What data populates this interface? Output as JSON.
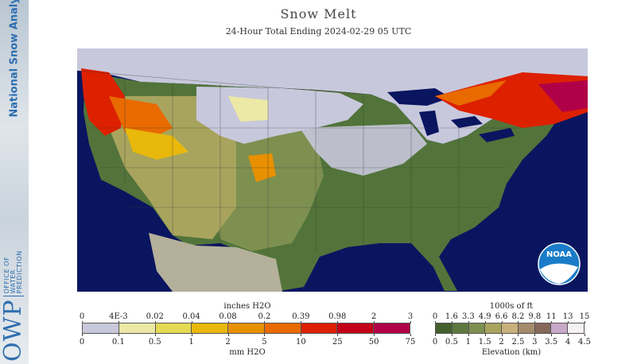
{
  "title": "Snow Melt",
  "subtitle": "24-Hour Total Ending 2024-02-29 05 UTC",
  "sidebar": {
    "org_name": "National Snow Analysis",
    "owp_logo": "OWP",
    "office_text": [
      "OFFICE OF",
      "WATER",
      "PREDICTION"
    ]
  },
  "noaa_logo": "NOAA",
  "snowmelt_legend": {
    "top_label": "inches H2O",
    "bottom_label": "mm H2O",
    "inch_ticks": [
      "0",
      "4E-3",
      "0.02",
      "0.04",
      "0.08",
      "0.2",
      "0.39",
      "0.98",
      "2",
      "3"
    ],
    "mm_ticks": [
      "0",
      "0.1",
      "0.5",
      "1",
      "2",
      "5",
      "10",
      "25",
      "50",
      "75"
    ],
    "colors": [
      "#c8c8dc",
      "#ece8a6",
      "#e6da55",
      "#e8b80c",
      "#e89000",
      "#e86a00",
      "#dd2000",
      "#c40018",
      "#b00048"
    ]
  },
  "elevation_legend": {
    "top_label": "1000s of ft",
    "bottom_label": "Elevation (km)",
    "ft_ticks": [
      "0",
      "1.6",
      "3.3",
      "4.9",
      "6.6",
      "8.2",
      "9.8",
      "11",
      "13",
      "15"
    ],
    "km_ticks": [
      "0",
      "0.5",
      "1",
      "1.5",
      "2",
      "2.5",
      "3",
      "3.5",
      "4",
      "4.5"
    ],
    "colors": [
      "#44602e",
      "#5e7840",
      "#7e9050",
      "#a8a45e",
      "#c8b07c",
      "#a58a6c",
      "#86685a",
      "#c8a8c8",
      "#f4f0f4"
    ]
  },
  "map_colors": {
    "ocean": "#0a1560",
    "lowland": "#52743a",
    "midland": "#7e9050",
    "highland": "#a8a45e",
    "snow": "#c8c8dc",
    "outside": "#b4b09a",
    "melt_low": "#e8b80c",
    "melt_mid": "#e86a00",
    "melt_high": "#dd2000",
    "melt_max": "#b00048"
  }
}
